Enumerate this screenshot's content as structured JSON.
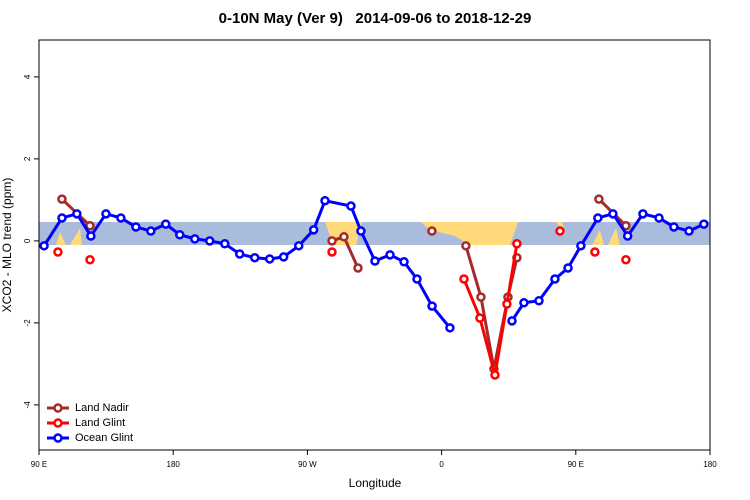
{
  "chart_data": {
    "type": "line",
    "title": "0-10N May (Ver 9)   2014-09-06 to 2018-12-29",
    "x_label": "Longitude",
    "y_label": "XCO2 - MLO trend (ppm)",
    "xlim": [
      90,
      540
    ],
    "ylim": [
      -5.1,
      4.9
    ],
    "xticks": [
      {
        "value": 90,
        "label": "90 E"
      },
      {
        "value": 180,
        "label": "180"
      },
      {
        "value": 270,
        "label": "90 W"
      },
      {
        "value": 360,
        "label": "0"
      },
      {
        "value": 450,
        "label": "90 E"
      },
      {
        "value": 540,
        "label": "180"
      }
    ],
    "yticks": [
      -4,
      -2,
      0,
      2,
      4
    ],
    "band": [
      -0.1,
      0.46
    ],
    "band_color": "#a9bcdb",
    "legend": "bottom-left",
    "series": [
      {
        "name": "Land Nadir",
        "color": "#a52a2a",
        "x": [
          105.4,
          124.2,
          200,
          286.5,
          294.5,
          303.9,
          330,
          353.5,
          360,
          376.3,
          386.4,
          395.1,
          404.5,
          410.5,
          500,
          465.5,
          483.6
        ],
        "values": [
          1.02,
          0.37,
          null,
          0,
          0.1,
          -0.66,
          null,
          0.24,
          null,
          -0.12,
          -1.37,
          -3.12,
          -1.37,
          -0.41,
          null,
          1.02,
          0.37
        ]
      },
      {
        "name": "Land Glint",
        "color": "#ff0000",
        "x": [
          102.7,
          110,
          124.2,
          200,
          286.5,
          330,
          375,
          385.7,
          395.8,
          403.8,
          410.5,
          425,
          439.4,
          450,
          462.8,
          470,
          483.6
        ],
        "values": [
          -0.27,
          null,
          -0.46,
          null,
          -0.27,
          null,
          -0.93,
          -1.88,
          -3.27,
          -1.54,
          -0.07,
          null,
          0.24,
          null,
          -0.27,
          null,
          -0.46
        ]
      },
      {
        "name": "Ocean Glint",
        "color": "#0000ff",
        "x": [
          93.4,
          105.4,
          115.4,
          124.8,
          134.9,
          144.9,
          155,
          165,
          175,
          184.4,
          194.5,
          204.5,
          214.6,
          224.6,
          234.7,
          244.7,
          254.1,
          264.2,
          274.2,
          281.8,
          299.2,
          305.9,
          315.3,
          325.4,
          334.8,
          343.5,
          353.6,
          365.6,
          380,
          407.2,
          415.2,
          425.3,
          436,
          444.8,
          453.4,
          464.8,
          474.9,
          484.8,
          495,
          505.8,
          515.8,
          525.9,
          535.9
        ],
        "values": [
          -0.12,
          0.56,
          0.66,
          0.12,
          0.66,
          0.56,
          0.34,
          0.24,
          0.41,
          0.15,
          0.05,
          0,
          -0.07,
          -0.32,
          -0.41,
          -0.44,
          -0.39,
          -0.12,
          0.27,
          0.98,
          0.85,
          0.24,
          -0.49,
          -0.34,
          -0.51,
          -0.93,
          -1.59,
          -2.12,
          null,
          -1.95,
          -1.51,
          -1.46,
          -0.93,
          -0.66,
          -0.12,
          0.56,
          0.66,
          0.12,
          0.66,
          0.56,
          0.34,
          0.24,
          0.41
        ]
      }
    ]
  }
}
